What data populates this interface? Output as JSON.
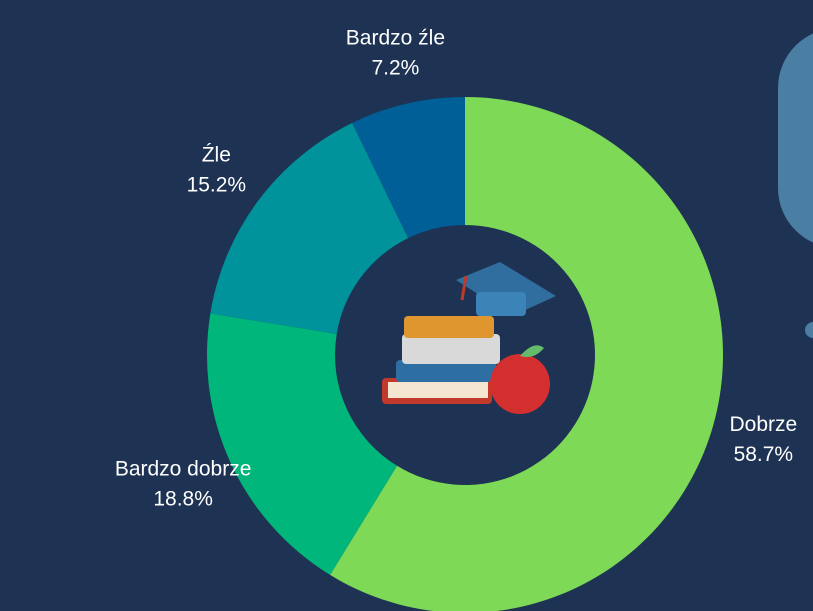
{
  "chart_data": {
    "type": "donut",
    "categories": [
      "Dobrze",
      "Bardzo dobrze",
      "Źle",
      "Bardzo źle"
    ],
    "values": [
      58.7,
      18.8,
      15.2,
      7.2
    ],
    "value_labels": [
      "58.7%",
      "18.8%",
      "15.2%",
      "7.2%"
    ],
    "colors": [
      "#7ed957",
      "#00b67a",
      "#00939b",
      "#005f96"
    ]
  }
}
